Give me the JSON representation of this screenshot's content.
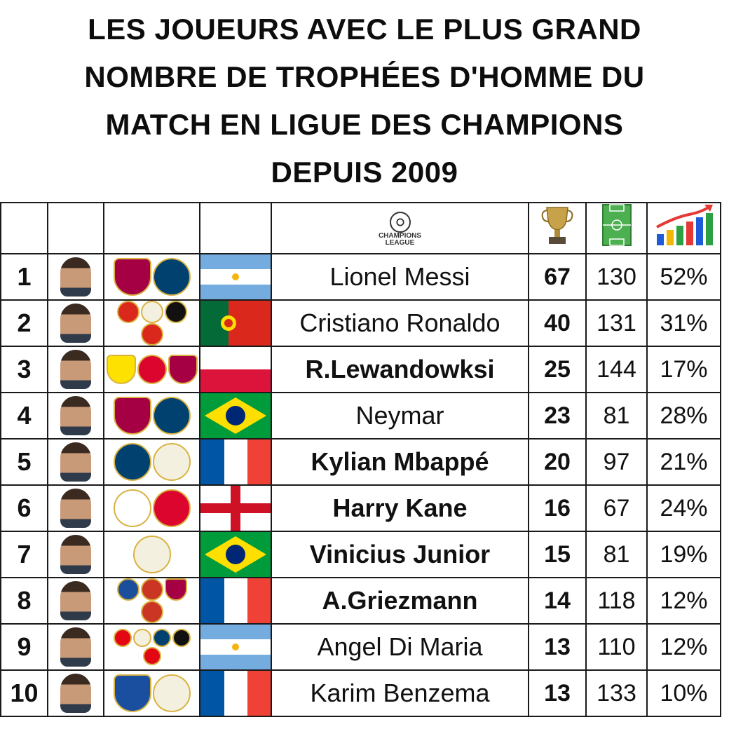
{
  "title_lines": [
    "LES JOUEURS AVEC LE PLUS GRAND",
    "NOMBRE DE TROPHÉES D'HOMME DU",
    "MATCH EN LIGUE DES CHAMPIONS",
    "DEPUIS 2009"
  ],
  "header": {
    "league_logo_text_1": "CHAMPIONS",
    "league_logo_text_2": "LEAGUE",
    "icons": [
      "champions-league-logo",
      "trophy-icon",
      "football-pitch-icon",
      "bar-chart-growth-icon"
    ]
  },
  "rows": [
    {
      "rank": "1",
      "name": "Lionel Messi",
      "awards": "67",
      "matches": "130",
      "ratio": "52%",
      "bold": false,
      "clubs": [
        "fc-barcelona-crest",
        "psg-crest"
      ],
      "flag": "argentina"
    },
    {
      "rank": "2",
      "name": "Cristiano Ronaldo",
      "awards": "40",
      "matches": "131",
      "ratio": "31%",
      "bold": false,
      "clubs": [
        "manchester-united-crest",
        "real-madrid-crest",
        "juventus-crest",
        "manchester-united-crest"
      ],
      "flag": "portugal"
    },
    {
      "rank": "3",
      "name": "R.Lewandowksi",
      "awards": "25",
      "matches": "144",
      "ratio": "17%",
      "bold": true,
      "clubs": [
        "borussia-dortmund-crest",
        "bayern-munich-crest",
        "fc-barcelona-crest"
      ],
      "flag": "poland"
    },
    {
      "rank": "4",
      "name": "Neymar",
      "awards": "23",
      "matches": "81",
      "ratio": "28%",
      "bold": false,
      "clubs": [
        "fc-barcelona-crest",
        "psg-crest"
      ],
      "flag": "brazil"
    },
    {
      "rank": "5",
      "name": "Kylian Mbappé",
      "awards": "20",
      "matches": "97",
      "ratio": "21%",
      "bold": true,
      "clubs": [
        "psg-crest",
        "real-madrid-crest"
      ],
      "flag": "france"
    },
    {
      "rank": "6",
      "name": "Harry Kane",
      "awards": "16",
      "matches": "67",
      "ratio": "24%",
      "bold": true,
      "clubs": [
        "tottenham-crest",
        "bayern-munich-crest"
      ],
      "flag": "england"
    },
    {
      "rank": "7",
      "name": "Vinicius Junior",
      "awards": "15",
      "matches": "81",
      "ratio": "19%",
      "bold": true,
      "clubs": [
        "real-madrid-crest"
      ],
      "flag": "brazil"
    },
    {
      "rank": "8",
      "name": "A.Griezmann",
      "awards": "14",
      "matches": "118",
      "ratio": "12%",
      "bold": true,
      "clubs": [
        "real-sociedad-crest",
        "atletico-madrid-crest",
        "fc-barcelona-crest",
        "atletico-madrid-crest"
      ],
      "flag": "france"
    },
    {
      "rank": "9",
      "name": "Angel Di Maria",
      "awards": "13",
      "matches": "110",
      "ratio": "12%",
      "bold": false,
      "clubs": [
        "benfica-crest",
        "real-madrid-crest",
        "psg-crest",
        "juventus-crest",
        "benfica-crest"
      ],
      "flag": "argentina"
    },
    {
      "rank": "10",
      "name": "Karim Benzema",
      "awards": "13",
      "matches": "133",
      "ratio": "10%",
      "bold": false,
      "clubs": [
        "olympique-lyonnais-crest",
        "real-madrid-crest"
      ],
      "flag": "france"
    }
  ],
  "colors": {
    "fc-barcelona-crest": "#a50044",
    "psg-crest": "#004170",
    "manchester-united-crest": "#da291c",
    "real-madrid-crest": "#f4f0e0",
    "juventus-crest": "#111111",
    "borussia-dortmund-crest": "#fde100",
    "bayern-munich-crest": "#dc052d",
    "tottenham-crest": "#ffffff",
    "real-sociedad-crest": "#1b4f9c",
    "atletico-madrid-crest": "#cb3524",
    "benfica-crest": "#e30613",
    "olympique-lyonnais-crest": "#1a4fa0"
  }
}
